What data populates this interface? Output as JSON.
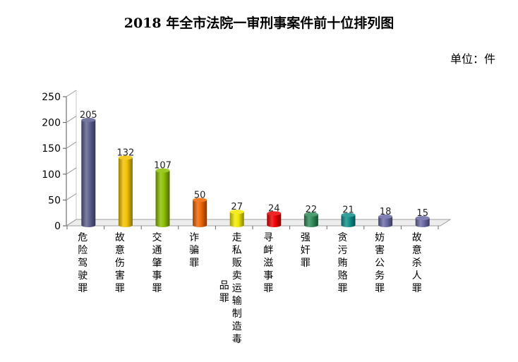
{
  "chart_data": {
    "type": "bar",
    "title": "2018 年全市法院一审刑事案件前十位排列图",
    "unit_label": "单位：件",
    "categories": [
      "危险驾驶罪",
      "故意伤害罪",
      "交通肇事罪",
      "诈骗罪",
      "走私贩卖运输制造毒品罪",
      "寻衅滋事罪",
      "强奸罪",
      "贪污贿赂罪",
      "妨害公务罪",
      "故意杀人罪"
    ],
    "values": [
      205,
      132,
      107,
      50,
      27,
      24,
      22,
      21,
      18,
      15
    ],
    "colors": [
      "#5c5f8f",
      "#f2c200",
      "#8cbf00",
      "#f06400",
      "#f2e800",
      "#ee0000",
      "#2e8b57",
      "#0f8f8a",
      "#6a6aa6",
      "#6a6aa6"
    ],
    "ylim": [
      0,
      250
    ],
    "yticks": [
      0,
      50,
      100,
      150,
      200,
      250
    ],
    "grid": false,
    "legend": "none"
  }
}
